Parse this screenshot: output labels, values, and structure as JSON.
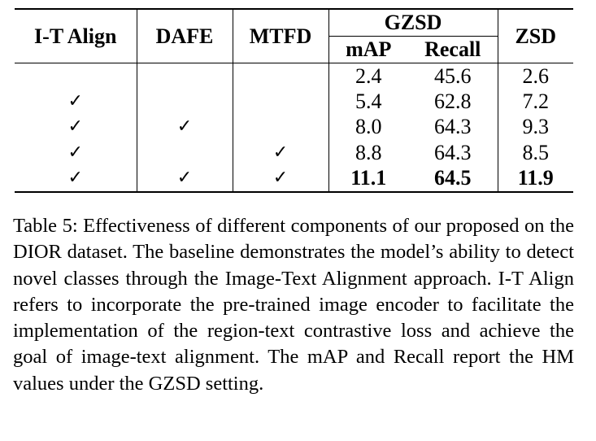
{
  "table": {
    "headers": {
      "it_align": "I-T Align",
      "dafe": "DAFE",
      "mtfd": "MTFD",
      "gzsd": "GZSD",
      "map": "mAP",
      "recall": "Recall",
      "zsd": "ZSD"
    },
    "check_symbol": "✓",
    "rows": [
      {
        "it_align": "",
        "dafe": "",
        "mtfd": "",
        "map": "2.4",
        "recall": "45.6",
        "zsd": "2.6",
        "bold": false
      },
      {
        "it_align": "✓",
        "dafe": "",
        "mtfd": "",
        "map": "5.4",
        "recall": "62.8",
        "zsd": "7.2",
        "bold": false
      },
      {
        "it_align": "✓",
        "dafe": "✓",
        "mtfd": "",
        "map": "8.0",
        "recall": "64.3",
        "zsd": "9.3",
        "bold": false
      },
      {
        "it_align": "✓",
        "dafe": "",
        "mtfd": "✓",
        "map": "8.8",
        "recall": "64.3",
        "zsd": "8.5",
        "bold": false
      },
      {
        "it_align": "✓",
        "dafe": "✓",
        "mtfd": "✓",
        "map": "11.1",
        "recall": "64.5",
        "zsd": "11.9",
        "bold": true
      }
    ]
  },
  "caption": {
    "text": "Table 5: Effectiveness of different components of our proposed on the DIOR dataset. The baseline demonstrates the model’s ability to detect novel classes through the Image-Text Alignment approach. I-T Align refers to incorporate the pre-trained image encoder to facilitate the implementation of the region-text contrastive loss and achieve the goal of image-text alignment. The mAP and Recall report the HM values under the GZSD setting."
  }
}
